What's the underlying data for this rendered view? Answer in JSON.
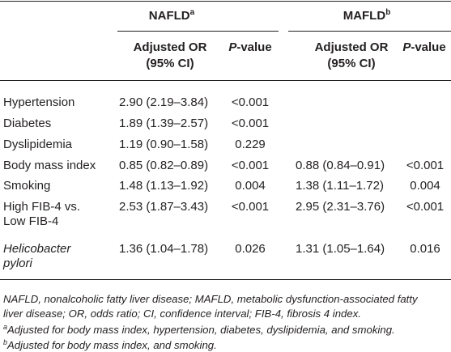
{
  "header": {
    "groups": [
      {
        "label": "NAFLD",
        "note": "a"
      },
      {
        "label": "MAFLD",
        "note": "b"
      }
    ],
    "or_lines": [
      "Adjusted OR",
      "(95% CI)"
    ],
    "p_value": {
      "italic": "P",
      "rest": "-value"
    }
  },
  "table": {
    "rows": [
      {
        "label": [
          "Hypertension"
        ],
        "cells": [
          "2.90 (2.19–3.84)",
          "<0.001"
        ]
      },
      {
        "label": [
          "Diabetes"
        ],
        "cells": [
          "1.89 (1.39–2.57)",
          "<0.001"
        ]
      },
      {
        "label": [
          "Dyslipidemia"
        ],
        "cells": [
          "1.19 (0.90–1.58)",
          "0.229"
        ]
      },
      {
        "label": [
          "Body mass index"
        ],
        "cells": [
          "0.85 (0.82–0.89)",
          "<0.001",
          "0.88 (0.84–0.91)",
          "<0.001"
        ]
      },
      {
        "label": [
          "Smoking"
        ],
        "cells": [
          "1.48 (1.13–1.92)",
          "0.004",
          "1.38 (1.11–1.72)",
          "0.004"
        ]
      },
      {
        "label": [
          "High FIB-4 vs.",
          "Low FIB-4"
        ],
        "cells": [
          "2.53 (1.87–3.43)",
          "<0.001",
          "2.95 (2.31–3.76)",
          "<0.001"
        ]
      },
      {
        "label": [
          "Helicobacter",
          "pylori"
        ],
        "italic": true,
        "cells": [
          "1.36 (1.04–1.78)",
          "0.026",
          "1.31 (1.05–1.64)",
          "0.016"
        ]
      }
    ]
  },
  "footnotes": {
    "abbreviations": [
      "NAFLD, nonalcoholic fatty liver disease; MAFLD, metabolic dysfunction-associated fatty",
      "liver disease; OR, odds ratio; CI, confidence interval; FIB-4, fibrosis 4 index."
    ],
    "notes": [
      {
        "marker": "a",
        "text": "Adjusted for body mass index, hypertension, diabetes, dyslipidemia, and smoking."
      },
      {
        "marker": "b",
        "text": "Adjusted for body mass index, and smoking."
      }
    ]
  }
}
